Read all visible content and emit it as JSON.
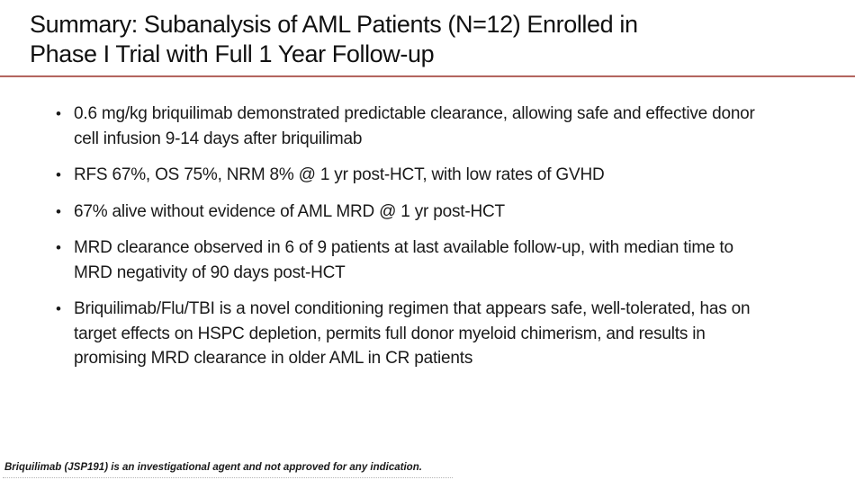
{
  "title": {
    "lines": [
      "Summary: Subanalysis of AML Patients (N=12) Enrolled in",
      "Phase I Trial with Full 1 Year Follow-up"
    ]
  },
  "bullet_glyph": "•",
  "bullets": [
    {
      "text": "0.6 mg/kg briquilimab demonstrated predictable clearance, allowing safe and effective donor cell infusion 9-14 days after briquilimab"
    },
    {
      "text": "RFS 67%, OS 75%, NRM 8% @ 1 yr post-HCT, with low rates of GVHD"
    },
    {
      "text": "67% alive without evidence of AML MRD @ 1 yr post-HCT"
    },
    {
      "text": "MRD clearance observed in 6 of 9 patients at last available follow-up, with median time to MRD negativity of 90 days post-HCT"
    },
    {
      "text": "Briquilimab/Flu/TBI is a novel conditioning regimen that appears safe, well-tolerated, has on target effects on HSPC depletion, permits full donor myeloid chimerism, and results in promising MRD clearance in older AML in CR patients"
    }
  ],
  "footnote": "Briquilimab (JSP191) is an investigational agent and not approved for any indication.",
  "colors": {
    "accent_rule_top": "#9c453f",
    "accent_rule_bottom": "#c87f78",
    "text": "#1a1a1a"
  }
}
